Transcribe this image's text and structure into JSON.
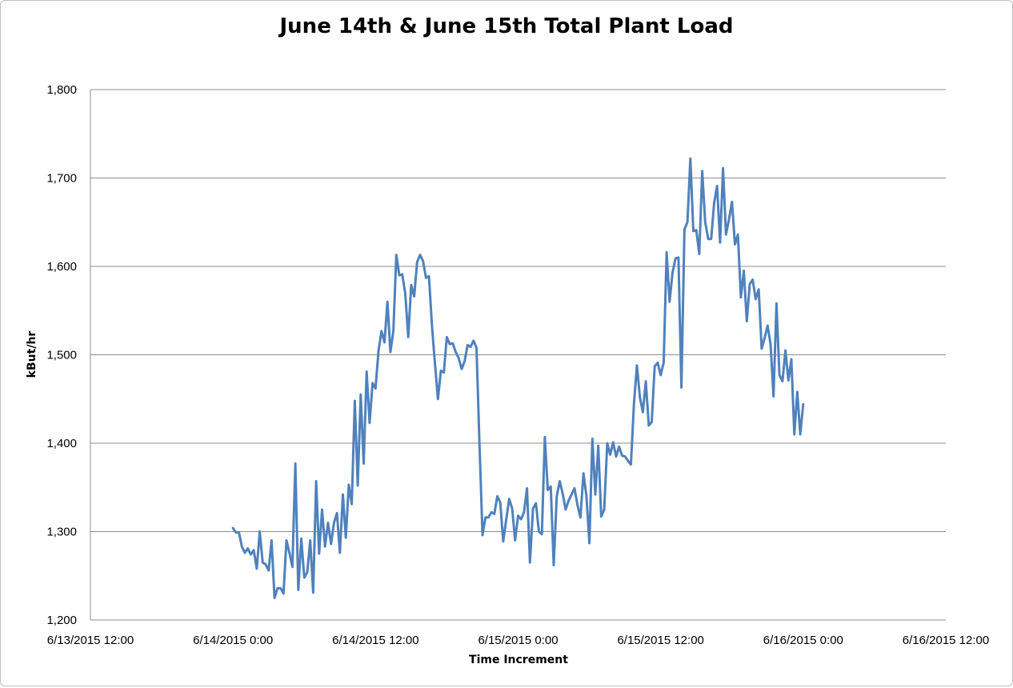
{
  "chart_data": {
    "type": "line",
    "title": "June 14th & June 15th Total Plant Load",
    "xlabel": "Time Increment",
    "ylabel": "kBut/hr",
    "ylim": [
      1200,
      1800
    ],
    "yticks": [
      1200,
      1300,
      1400,
      1500,
      1600,
      1700,
      1800
    ],
    "ytick_labels": [
      "1,200",
      "1,300",
      "1,400",
      "1,500",
      "1,600",
      "1,700",
      "1,800"
    ],
    "xlim": [
      "6/13/2015 12:00",
      "6/16/2015 12:00"
    ],
    "xtick_labels": [
      "6/13/2015 12:00",
      "6/14/2015 0:00",
      "6/14/2015 12:00",
      "6/15/2015 0:00",
      "6/15/2015 12:00",
      "6/16/2015 0:00",
      "6/16/2015 12:00"
    ],
    "grid": true,
    "legend": "none",
    "line_color": "#4f81bd",
    "series": [
      {
        "x": [
          "6/14/2015 0:00",
          "6/14/2015 0:15",
          "6/14/2015 0:30",
          "6/14/2015 0:45",
          "6/14/2015 1:00",
          "6/14/2015 1:15",
          "6/14/2015 1:30",
          "6/14/2015 1:45",
          "6/14/2015 2:00",
          "6/14/2015 2:15",
          "6/14/2015 2:30",
          "6/14/2015 2:45",
          "6/14/2015 3:00",
          "6/14/2015 3:15",
          "6/14/2015 3:30",
          "6/14/2015 3:45",
          "6/14/2015 4:00",
          "6/14/2015 4:15",
          "6/14/2015 4:30",
          "6/14/2015 4:45",
          "6/14/2015 5:00",
          "6/14/2015 5:15",
          "6/14/2015 5:30",
          "6/14/2015 5:45",
          "6/14/2015 6:00",
          "6/14/2015 6:15",
          "6/14/2015 6:30",
          "6/14/2015 6:45",
          "6/14/2015 7:00",
          "6/14/2015 7:15",
          "6/14/2015 7:30",
          "6/14/2015 7:45",
          "6/14/2015 8:00",
          "6/14/2015 8:15",
          "6/14/2015 8:30",
          "6/14/2015 8:45",
          "6/14/2015 9:00",
          "6/14/2015 9:15",
          "6/14/2015 9:30",
          "6/14/2015 9:45",
          "6/14/2015 10:00",
          "6/14/2015 10:15",
          "6/14/2015 10:30",
          "6/14/2015 10:45",
          "6/14/2015 11:00",
          "6/14/2015 11:15",
          "6/14/2015 11:30",
          "6/14/2015 11:45",
          "6/14/2015 12:00",
          "6/14/2015 12:15",
          "6/14/2015 12:30",
          "6/14/2015 12:45",
          "6/14/2015 13:00",
          "6/14/2015 13:15",
          "6/14/2015 13:30",
          "6/14/2015 13:45",
          "6/14/2015 14:00",
          "6/14/2015 14:15",
          "6/14/2015 14:30",
          "6/14/2015 14:45",
          "6/14/2015 15:00",
          "6/14/2015 15:15",
          "6/14/2015 15:30",
          "6/14/2015 15:45",
          "6/14/2015 16:00",
          "6/14/2015 16:15",
          "6/14/2015 16:30",
          "6/14/2015 16:45",
          "6/14/2015 17:00",
          "6/14/2015 17:15",
          "6/14/2015 17:30",
          "6/14/2015 17:45",
          "6/14/2015 18:00",
          "6/14/2015 18:15",
          "6/14/2015 18:30",
          "6/14/2015 18:45",
          "6/14/2015 19:00",
          "6/14/2015 19:15",
          "6/14/2015 19:30",
          "6/14/2015 19:45",
          "6/14/2015 20:00",
          "6/14/2015 20:15",
          "6/14/2015 20:30",
          "6/14/2015 20:45",
          "6/14/2015 21:00",
          "6/14/2015 21:15",
          "6/14/2015 21:30",
          "6/14/2015 21:45",
          "6/14/2015 22:00",
          "6/14/2015 22:15",
          "6/14/2015 22:30",
          "6/14/2015 22:45",
          "6/14/2015 23:00",
          "6/14/2015 23:15",
          "6/14/2015 23:30",
          "6/14/2015 23:45",
          "6/15/2015 0:00",
          "6/15/2015 0:15",
          "6/15/2015 0:30",
          "6/15/2015 0:45",
          "6/15/2015 1:00",
          "6/15/2015 1:15",
          "6/15/2015 1:30",
          "6/15/2015 1:45",
          "6/15/2015 2:00",
          "6/15/2015 2:15",
          "6/15/2015 2:30",
          "6/15/2015 2:45",
          "6/15/2015 3:00",
          "6/15/2015 3:15",
          "6/15/2015 3:30",
          "6/15/2015 3:45",
          "6/15/2015 4:00",
          "6/15/2015 4:15",
          "6/15/2015 4:30",
          "6/15/2015 4:45",
          "6/15/2015 5:00",
          "6/15/2015 5:15",
          "6/15/2015 5:30",
          "6/15/2015 5:45",
          "6/15/2015 6:00",
          "6/15/2015 6:15",
          "6/15/2015 6:30",
          "6/15/2015 6:45",
          "6/15/2015 7:00",
          "6/15/2015 7:15",
          "6/15/2015 7:30",
          "6/15/2015 7:45",
          "6/15/2015 8:00",
          "6/15/2015 8:15",
          "6/15/2015 8:30",
          "6/15/2015 8:45",
          "6/15/2015 9:00",
          "6/15/2015 9:15",
          "6/15/2015 9:30",
          "6/15/2015 9:45",
          "6/15/2015 10:00",
          "6/15/2015 10:15",
          "6/15/2015 10:30",
          "6/15/2015 10:45",
          "6/15/2015 11:00",
          "6/15/2015 11:15",
          "6/15/2015 11:30",
          "6/15/2015 11:45",
          "6/15/2015 12:00",
          "6/15/2015 12:15",
          "6/15/2015 12:30",
          "6/15/2015 12:45",
          "6/15/2015 13:00",
          "6/15/2015 13:15",
          "6/15/2015 13:30",
          "6/15/2015 13:45",
          "6/15/2015 14:00",
          "6/15/2015 14:15",
          "6/15/2015 14:30",
          "6/15/2015 14:45",
          "6/15/2015 15:00",
          "6/15/2015 15:15",
          "6/15/2015 15:30",
          "6/15/2015 15:45",
          "6/15/2015 16:00",
          "6/15/2015 16:15",
          "6/15/2015 16:30",
          "6/15/2015 16:45",
          "6/15/2015 17:00",
          "6/15/2015 17:15",
          "6/15/2015 17:30",
          "6/15/2015 17:45",
          "6/15/2015 18:00",
          "6/15/2015 18:15",
          "6/15/2015 18:30",
          "6/15/2015 18:45",
          "6/15/2015 19:00",
          "6/15/2015 19:15",
          "6/15/2015 19:30",
          "6/15/2015 19:45",
          "6/15/2015 20:00",
          "6/15/2015 20:15",
          "6/15/2015 20:30",
          "6/15/2015 20:45",
          "6/15/2015 21:00",
          "6/15/2015 21:15",
          "6/15/2015 21:30",
          "6/15/2015 21:45",
          "6/15/2015 22:00",
          "6/15/2015 22:15",
          "6/15/2015 22:30",
          "6/15/2015 22:45",
          "6/15/2015 23:00",
          "6/15/2015 23:15",
          "6/15/2015 23:30",
          "6/15/2015 23:45",
          "6/16/2015 0:00"
        ],
        "values": [
          1304,
          1299,
          1299,
          1283,
          1276,
          1281,
          1274,
          1279,
          1258,
          1300,
          1265,
          1263,
          1256,
          1290,
          1225,
          1236,
          1236,
          1230,
          1290,
          1276,
          1260,
          1377,
          1234,
          1292,
          1248,
          1254,
          1290,
          1231,
          1357,
          1275,
          1325,
          1283,
          1310,
          1286,
          1310,
          1321,
          1276,
          1342,
          1293,
          1353,
          1331,
          1448,
          1352,
          1455,
          1377,
          1481,
          1423,
          1468,
          1462,
          1504,
          1527,
          1514,
          1560,
          1503,
          1527,
          1613,
          1590,
          1591,
          1569,
          1520,
          1579,
          1566,
          1605,
          1613,
          1606,
          1587,
          1589,
          1532,
          1490,
          1450,
          1482,
          1480,
          1520,
          1512,
          1513,
          1503,
          1496,
          1484,
          1493,
          1511,
          1509,
          1516,
          1508,
          1400,
          1296,
          1316,
          1316,
          1322,
          1320,
          1340,
          1333,
          1289,
          1314,
          1337,
          1326,
          1290,
          1318,
          1314,
          1322,
          1349,
          1265,
          1326,
          1332,
          1300,
          1297,
          1407,
          1347,
          1351,
          1262,
          1340,
          1357,
          1343,
          1325,
          1335,
          1342,
          1349,
          1330,
          1316,
          1366,
          1340,
          1287,
          1405,
          1342,
          1397,
          1317,
          1325,
          1400,
          1387,
          1401,
          1385,
          1396,
          1386,
          1385,
          1380,
          1376,
          1445,
          1488,
          1452,
          1435,
          1470,
          1420,
          1424,
          1487,
          1491,
          1477,
          1491,
          1616,
          1560,
          1593,
          1609,
          1610,
          1463,
          1642,
          1650,
          1722,
          1640,
          1641,
          1614,
          1708,
          1650,
          1631,
          1631,
          1672,
          1691,
          1627,
          1711,
          1636,
          1653,
          1673,
          1625,
          1636,
          1565,
          1595,
          1538,
          1580,
          1585,
          1563,
          1574,
          1507,
          1519,
          1533,
          1512,
          1453,
          1558,
          1477,
          1470,
          1505,
          1471,
          1495,
          1410,
          1458,
          1410,
          1444
        ]
      }
    ]
  }
}
